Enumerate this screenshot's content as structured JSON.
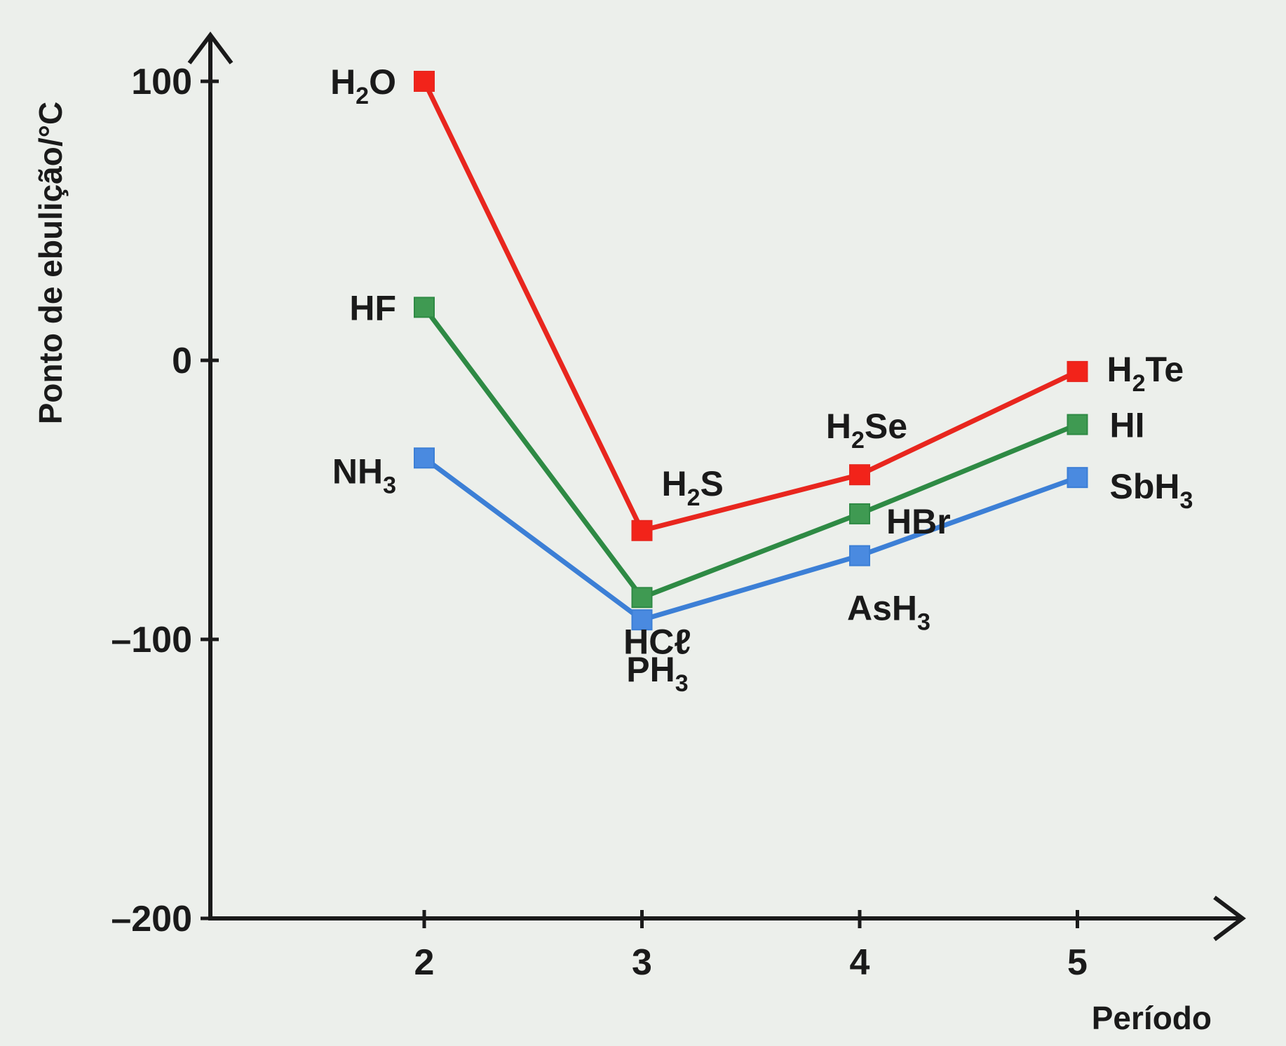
{
  "chart_data": {
    "type": "line",
    "title": "",
    "xlabel": "Período",
    "ylabel": "Ponto de ebulição/°C",
    "x": [
      2,
      3,
      4,
      5
    ],
    "xlim": [
      1,
      5.8
    ],
    "ylim": [
      -200,
      100
    ],
    "yticks": [
      "100",
      "0",
      "–100",
      "–200"
    ],
    "ytick_values": [
      100,
      0,
      -100,
      -200
    ],
    "xticks": [
      "2",
      "3",
      "4",
      "5"
    ],
    "grid": false,
    "legend": "none",
    "series": [
      {
        "color": "#e8261e",
        "marker_color": "#f2231a",
        "values": [
          100,
          -61,
          -41,
          -4
        ],
        "labels": [
          {
            "main": "H",
            "sub": "2",
            "rest": "O"
          },
          {
            "main": "H",
            "sub": "2",
            "rest": "S"
          },
          {
            "main": "H",
            "sub": "2",
            "rest": "Se"
          },
          {
            "main": "H",
            "sub": "2",
            "rest": "Te"
          }
        ]
      },
      {
        "color": "#2e8a44",
        "marker_color": "#3f9a52",
        "values": [
          19,
          -85,
          -55,
          -23
        ],
        "labels": [
          {
            "main": "HF",
            "sub": "",
            "rest": ""
          },
          {
            "main": "HCℓ",
            "sub": "",
            "rest": ""
          },
          {
            "main": "HBr",
            "sub": "",
            "rest": ""
          },
          {
            "main": "HI",
            "sub": "",
            "rest": ""
          }
        ]
      },
      {
        "color": "#3c7fd6",
        "marker_color": "#4a8ae0",
        "values": [
          -35,
          -93,
          -70,
          -42
        ],
        "labels": [
          {
            "main": "NH",
            "sub": "3",
            "rest": ""
          },
          {
            "main": "PH",
            "sub": "3",
            "rest": ""
          },
          {
            "main": "AsH",
            "sub": "3",
            "rest": ""
          },
          {
            "main": "SbH",
            "sub": "3",
            "rest": ""
          }
        ]
      }
    ]
  }
}
